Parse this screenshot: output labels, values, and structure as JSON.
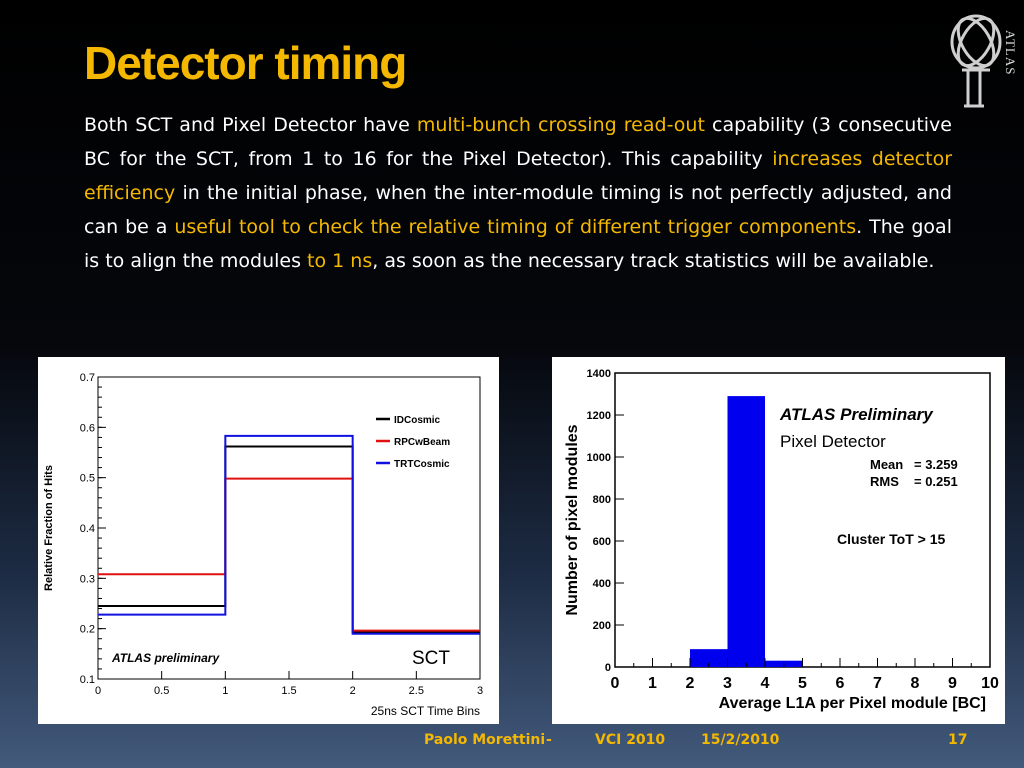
{
  "slide": {
    "title": "Detector timing",
    "logo_text": "ATLAS",
    "paragraph": [
      {
        "t": "Both SCT and Pixel Detector have ",
        "hl": false
      },
      {
        "t": "multi-bunch crossing read-out",
        "hl": true
      },
      {
        "t": " capability (3 consecutive BC for the SCT, from 1 to 16 for the Pixel Detector). This capability ",
        "hl": false
      },
      {
        "t": "increases detector efficiency",
        "hl": true
      },
      {
        "t": " in the initial phase, when the inter-module timing is not perfectly adjusted, and can be a ",
        "hl": false
      },
      {
        "t": "useful tool to check the relative timing of different trigger components",
        "hl": true
      },
      {
        "t": ". The goal is to align the modules ",
        "hl": false
      },
      {
        "t": "to 1 ns",
        "hl": true
      },
      {
        "t": ", as soon as the necessary track statistics will be available.",
        "hl": false
      }
    ],
    "footer": {
      "author": "Paolo Morettini",
      "sep": "-",
      "event": "VCI 2010",
      "date": "15/2/2010",
      "page": "17"
    }
  },
  "chart_data": [
    {
      "type": "line",
      "step": true,
      "xlabel": "25ns SCT Time Bins",
      "ylabel": "Relative Fraction of Hits",
      "xlim": [
        0,
        3
      ],
      "ylim": [
        0.1,
        0.7
      ],
      "xticks": [
        0,
        0.5,
        1,
        1.5,
        2,
        2.5,
        3
      ],
      "yticks": [
        0.1,
        0.2,
        0.3,
        0.4,
        0.5,
        0.6,
        0.7
      ],
      "xtick_labels": [
        "0",
        "0.5",
        "1",
        "1.5",
        "2",
        "2.5",
        "3"
      ],
      "ytick_labels": [
        "0.1",
        "0.2",
        "0.3",
        "0.4",
        "0.5",
        "0.6",
        "0.7"
      ],
      "bin_edges": [
        0,
        1,
        2,
        3
      ],
      "series": [
        {
          "name": "IDCosmic",
          "color": "#000000",
          "values": [
            0.245,
            0.562,
            0.193
          ]
        },
        {
          "name": "RPCwBeam",
          "color": "#e01010",
          "values": [
            0.308,
            0.498,
            0.196
          ]
        },
        {
          "name": "TRTCosmic",
          "color": "#1010e0",
          "values": [
            0.228,
            0.583,
            0.19
          ]
        }
      ],
      "annotations": [
        "ATLAS preliminary",
        "SCT"
      ],
      "legend": "top-right"
    },
    {
      "type": "bar",
      "xlabel": "Average L1A per Pixel module [BC]",
      "ylabel": "Number of pixel modules",
      "xlim": [
        0,
        10
      ],
      "ylim": [
        0,
        1400
      ],
      "xticks": [
        0,
        1,
        2,
        3,
        4,
        5,
        6,
        7,
        8,
        9,
        10
      ],
      "yticks": [
        0,
        200,
        400,
        600,
        800,
        1000,
        1200,
        1400
      ],
      "xtick_labels": [
        "0",
        "1",
        "2",
        "3",
        "4",
        "5",
        "6",
        "7",
        "8",
        "9",
        "10"
      ],
      "ytick_labels": [
        "0",
        "200",
        "400",
        "600",
        "800",
        "1000",
        "1200",
        "1400"
      ],
      "bin_edges": [
        2,
        3,
        4,
        5
      ],
      "values": [
        85,
        1290,
        30
      ],
      "bar_color": "#0000ee",
      "annotations": {
        "header": "ATLAS Preliminary",
        "subheader": "Pixel Detector",
        "mean_label": "Mean",
        "mean_value": "= 3.259",
        "rms_label": "RMS",
        "rms_value": "= 0.251",
        "cut": "Cluster ToT > 15"
      }
    }
  ]
}
